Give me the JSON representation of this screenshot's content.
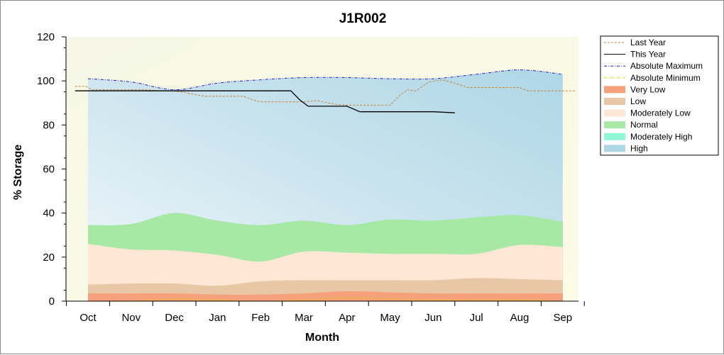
{
  "chart_data": {
    "type": "area",
    "title": "J1R002",
    "xlabel": "Month",
    "ylabel": "% Storage",
    "ylim": [
      0,
      120
    ],
    "yticks": [
      "0",
      "20",
      "40",
      "60",
      "80",
      "100",
      "120"
    ],
    "categories": [
      "Oct",
      "Nov",
      "Dec",
      "Jan",
      "Feb",
      "Mar",
      "Apr",
      "May",
      "Jun",
      "Jul",
      "Aug",
      "Sep"
    ],
    "legend_position": "top-right",
    "bands": [
      {
        "name": "Very Low",
        "color": "#f6a07c",
        "lower": [
          0,
          0,
          1,
          0.5,
          0,
          0.5,
          1.5,
          1,
          0.5,
          0.5,
          0.5,
          0
        ],
        "upper": [
          3.5,
          3.5,
          3.5,
          3,
          3,
          3.5,
          4.5,
          4,
          3.5,
          3.5,
          3.5,
          3.5
        ]
      },
      {
        "name": "Low",
        "color": "#e8c7a6",
        "lower": [
          3.5,
          3.5,
          3.5,
          3,
          3,
          3.5,
          4.5,
          4,
          3.5,
          3.5,
          3.5,
          3.5
        ],
        "upper": [
          7.5,
          8,
          8,
          7,
          9,
          9.5,
          9.5,
          9.5,
          9.5,
          10.5,
          10,
          9.5
        ]
      },
      {
        "name": "Moderately Low",
        "color": "#ffe7d6",
        "lower": [
          7.5,
          8,
          8,
          7,
          9,
          9.5,
          9.5,
          9.5,
          9.5,
          10.5,
          10,
          9.5
        ],
        "upper": [
          26,
          23.5,
          23,
          21,
          18,
          22.5,
          22,
          21.5,
          21.5,
          21.5,
          25.5,
          24.5
        ]
      },
      {
        "name": "Normal",
        "color": "#a7e8a5",
        "lower": [
          26,
          23.5,
          23,
          21,
          18,
          22.5,
          22,
          21.5,
          21.5,
          21.5,
          25.5,
          24.5
        ],
        "upper": [
          34.5,
          35,
          40,
          36.5,
          34.5,
          36.5,
          34.5,
          37,
          36.5,
          38,
          39,
          36
        ]
      },
      {
        "name": "Moderately High",
        "color": "#8ef7d6",
        "lower": [
          34.5,
          35,
          40,
          36.5,
          34.5,
          36.5,
          34.5,
          37,
          36.5,
          38,
          39,
          36
        ],
        "upper": [
          101,
          99.5,
          96,
          99,
          100.5,
          101.5,
          101.5,
          101,
          101,
          103,
          105,
          103
        ]
      }
    ],
    "high_band": {
      "name": "High",
      "color_top": "#aed7e6",
      "color_bottom": "#f2f8fb"
    },
    "series": [
      {
        "name": "Last Year",
        "color": "#c8823c",
        "style": "dotted",
        "x": [
          -0.3,
          -0.05,
          0.1,
          0.5,
          1,
          1.3,
          1.7,
          2,
          2.3,
          2.7,
          3,
          3.3,
          3.6,
          3.8,
          4,
          5,
          5.3,
          5.7,
          6,
          6.5,
          7,
          7.2,
          7.4,
          7.6,
          7.9,
          8.2,
          8.5,
          8.8,
          9,
          10,
          10.2,
          11,
          11.3
        ],
        "y": [
          97.5,
          97.5,
          96,
          96,
          96,
          96,
          95.5,
          95.5,
          94.5,
          93,
          93,
          93,
          93,
          91.5,
          90.5,
          90.5,
          91,
          89.5,
          89,
          89,
          89,
          93,
          96,
          95.5,
          99.5,
          100.5,
          99,
          97,
          97,
          97,
          95.5,
          95.5,
          95.5
        ]
      },
      {
        "name": "This Year",
        "color": "#000000",
        "style": "solid",
        "x": [
          -0.3,
          1,
          1.3,
          2,
          3,
          4,
          4.7,
          4.9,
          5.1,
          5.7,
          6,
          6.3,
          7,
          8,
          8.5
        ],
        "y": [
          95.5,
          95.5,
          95.5,
          95.5,
          95.5,
          95.5,
          95.5,
          91.5,
          88.5,
          88.5,
          88.5,
          86,
          86,
          86,
          85.5
        ]
      },
      {
        "name": "Absolute Maximum",
        "color": "#1e1ed2",
        "style": "dashdot",
        "x": [
          0,
          1,
          2,
          3,
          4,
          5,
          6,
          7,
          8,
          9,
          10,
          11
        ],
        "y": [
          101,
          99.5,
          96,
          99,
          100.5,
          101.5,
          101.5,
          101,
          101,
          103,
          105,
          103
        ]
      },
      {
        "name": "Absolute Minimum",
        "color": "#e0d000",
        "style": "dashdot",
        "x": [
          0,
          1,
          2,
          3,
          4,
          5,
          6,
          7,
          8,
          9,
          10,
          11
        ],
        "y": [
          0,
          0,
          1,
          0.5,
          0,
          0.5,
          1.5,
          1,
          0.5,
          0.5,
          0.5,
          0
        ]
      }
    ],
    "legend": [
      {
        "label": "Last Year",
        "kind": "line",
        "color": "#c8823c",
        "dash": "3,2"
      },
      {
        "label": "This Year",
        "kind": "line",
        "color": "#000000",
        "dash": ""
      },
      {
        "label": "Absolute Maximum",
        "kind": "line",
        "color": "#1e1ed2",
        "dash": "4,2,1,2"
      },
      {
        "label": "Absolute Minimum",
        "kind": "line",
        "color": "#e0d000",
        "dash": "4,2,1,2"
      },
      {
        "label": "Very Low",
        "kind": "area",
        "color": "#f6a07c"
      },
      {
        "label": "Low",
        "kind": "area",
        "color": "#e8c7a6"
      },
      {
        "label": "Moderately Low",
        "kind": "area",
        "color": "#ffe7d6"
      },
      {
        "label": "Normal",
        "kind": "area",
        "color": "#a7e8a5"
      },
      {
        "label": "Moderately High",
        "kind": "area",
        "color": "#8ef7d6"
      },
      {
        "label": "High",
        "kind": "area",
        "color": "#aed7e6"
      }
    ]
  }
}
